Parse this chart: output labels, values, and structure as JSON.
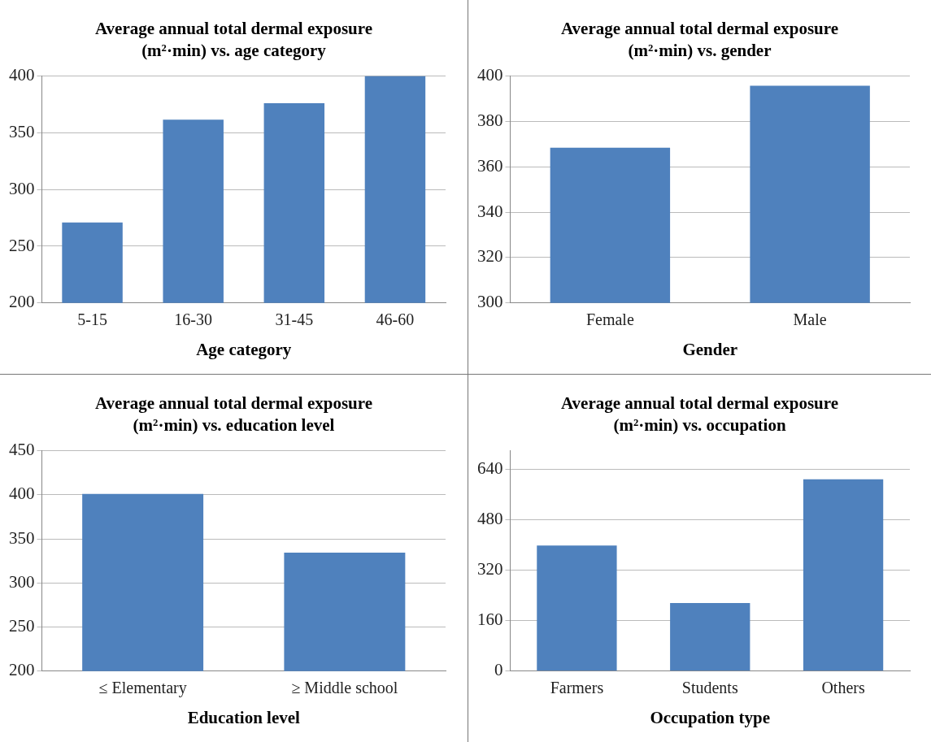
{
  "chart_data": [
    {
      "type": "bar",
      "title": "Average annual total dermal exposure (m²·min) vs. age category",
      "xlabel": "Age category",
      "categories": [
        "5-15",
        "16-30",
        "31-45",
        "46-60"
      ],
      "values": [
        271,
        361.5,
        376,
        400
      ],
      "color": "#4f81bd",
      "ylim": [
        200,
        400
      ],
      "yticks": [
        200,
        250,
        300,
        350,
        400
      ],
      "grid": "y"
    },
    {
      "type": "bar",
      "title": "Average annual total dermal exposure (m²·min) vs. gender",
      "xlabel": "Gender",
      "categories": [
        "Female",
        "Male"
      ],
      "values": [
        368.4,
        395.7
      ],
      "color": "#4f81bd",
      "ylim": [
        300,
        400
      ],
      "yticks": [
        300,
        320,
        340,
        360,
        380,
        400
      ],
      "grid": "y"
    },
    {
      "type": "bar",
      "title": "Average annual total dermal exposure (m²·min) vs. education level",
      "xlabel": "Education level",
      "categories": [
        "≤ Elementary",
        "≥ Middle school"
      ],
      "values": [
        401,
        334.5
      ],
      "color": "#4f81bd",
      "ylim": [
        200,
        450
      ],
      "yticks": [
        200,
        250,
        300,
        350,
        400,
        450
      ],
      "grid": "y"
    },
    {
      "type": "bar",
      "title": "Average annual total dermal exposure (m²·min) vs. occupation",
      "xlabel": "Occupation type",
      "categories": [
        "Farmers",
        "Students",
        "Others"
      ],
      "values": [
        399,
        216,
        609
      ],
      "color": "#4f81bd",
      "ylim": [
        0,
        700
      ],
      "yticks": [
        0,
        160,
        320,
        480,
        640
      ],
      "grid": "y"
    }
  ]
}
